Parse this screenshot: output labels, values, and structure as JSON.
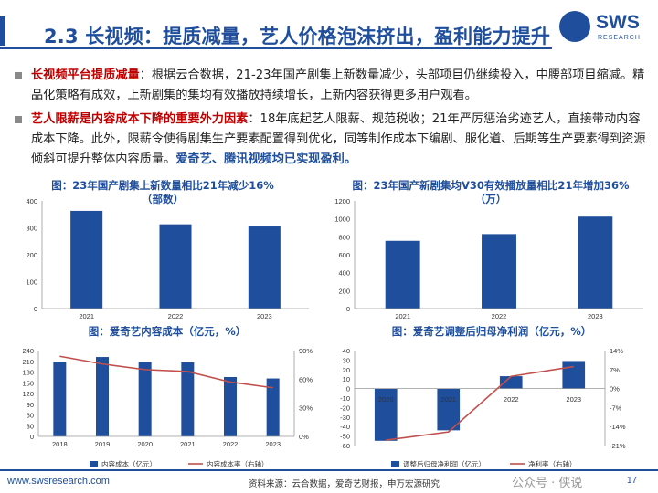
{
  "header": {
    "title": "2.3 长视频：提质减量，艺人价格泡沫挤出，盈利能力提升",
    "logo_text": "SWS",
    "logo_sub": "RESEARCH"
  },
  "bullets": [
    {
      "lead": "长视频平台提质减量",
      "body": "：根据云合数据，21-23年国产剧集上新数量减少，头部项目仍继续投入，中腰部项目缩减。精品化策略有成效，上新剧集的集均有效播放持续增长，上新内容获得更多用户观看。",
      "tail": ""
    },
    {
      "lead": "艺人限薪是内容成本下降的重要外力因素",
      "body": "：18年底起艺人限薪、规范税收；21年严厉惩治劣迹艺人，直接带动内容成本下降。此外，限薪令使得剧集生产要素配置得到优化，同等制作成本下编剧、服化道、后期等生产要素得到资源倾斜可提升整体内容质量。",
      "tail": "爱奇艺、腾讯视频均已实现盈利。"
    }
  ],
  "colors": {
    "brand": "#1f4e9c",
    "bar": "#1f4e9c",
    "line": "#c0504d",
    "accent_red": "#c00000"
  },
  "chart_data": [
    {
      "type": "bar",
      "title": "图：23年国产剧集上新数量相比21年减少16%（部数）",
      "categories": [
        "2021",
        "2022",
        "2023"
      ],
      "values": [
        363,
        313,
        305
      ],
      "ylim": [
        0,
        400
      ],
      "yticks": [
        0,
        100,
        200,
        300,
        400
      ]
    },
    {
      "type": "bar",
      "title": "图：23年国产新剧集均V30有效播放量相比21年增加36%（万）",
      "categories": [
        "2021",
        "2022",
        "2023"
      ],
      "values": [
        755,
        830,
        1025
      ],
      "ylim": [
        0,
        1200
      ],
      "yticks": [
        0,
        200,
        400,
        600,
        800,
        1000,
        1200
      ]
    },
    {
      "type": "bar",
      "title": "图：爱奇艺内容成本（亿元，%）",
      "categories": [
        "2018",
        "2019",
        "2020",
        "2021",
        "2022",
        "2023"
      ],
      "series": [
        {
          "name": "内容成本（亿元）",
          "type": "bar",
          "axis": "left",
          "values": [
            209,
            222,
            208,
            207,
            166,
            162
          ]
        },
        {
          "name": "内容成本率（右轴）",
          "type": "line",
          "axis": "right",
          "values": [
            84,
            76,
            70,
            68,
            57,
            51
          ]
        }
      ],
      "ylim": [
        0,
        240
      ],
      "yticks": [
        0,
        30,
        60,
        90,
        120,
        150,
        180,
        210,
        240
      ],
      "y2lim": [
        0,
        90
      ],
      "y2ticks": [
        "0%",
        "30%",
        "60%",
        "90%"
      ],
      "legend": "bottom"
    },
    {
      "type": "bar",
      "title": "图：爱奇艺调整后归母净利润（亿元，%）",
      "categories": [
        "2020",
        "2021",
        "2022",
        "2023"
      ],
      "series": [
        {
          "name": "调整后归母净利润（亿元）",
          "type": "bar",
          "axis": "left",
          "values": [
            -55,
            -44,
            13,
            29
          ]
        },
        {
          "name": "净利率（右轴）",
          "type": "line",
          "axis": "right",
          "values": [
            -19,
            -16,
            4.5,
            8.1
          ]
        }
      ],
      "ylim": [
        -60,
        40
      ],
      "yticks": [
        -60,
        -50,
        -40,
        -30,
        -20,
        -10,
        0,
        10,
        20,
        30,
        40
      ],
      "y2lim": [
        -21,
        14
      ],
      "y2ticks": [
        "-21%",
        "-14%",
        "-7%",
        "0%",
        "7%",
        "14%"
      ],
      "legend": "bottom"
    }
  ],
  "footer": {
    "url": "www.swsresearch.com",
    "source": "资料来源：云合数据，爱奇艺财报，申万宏源研究",
    "watermark": "公众号 · 侠说",
    "page": "17"
  }
}
